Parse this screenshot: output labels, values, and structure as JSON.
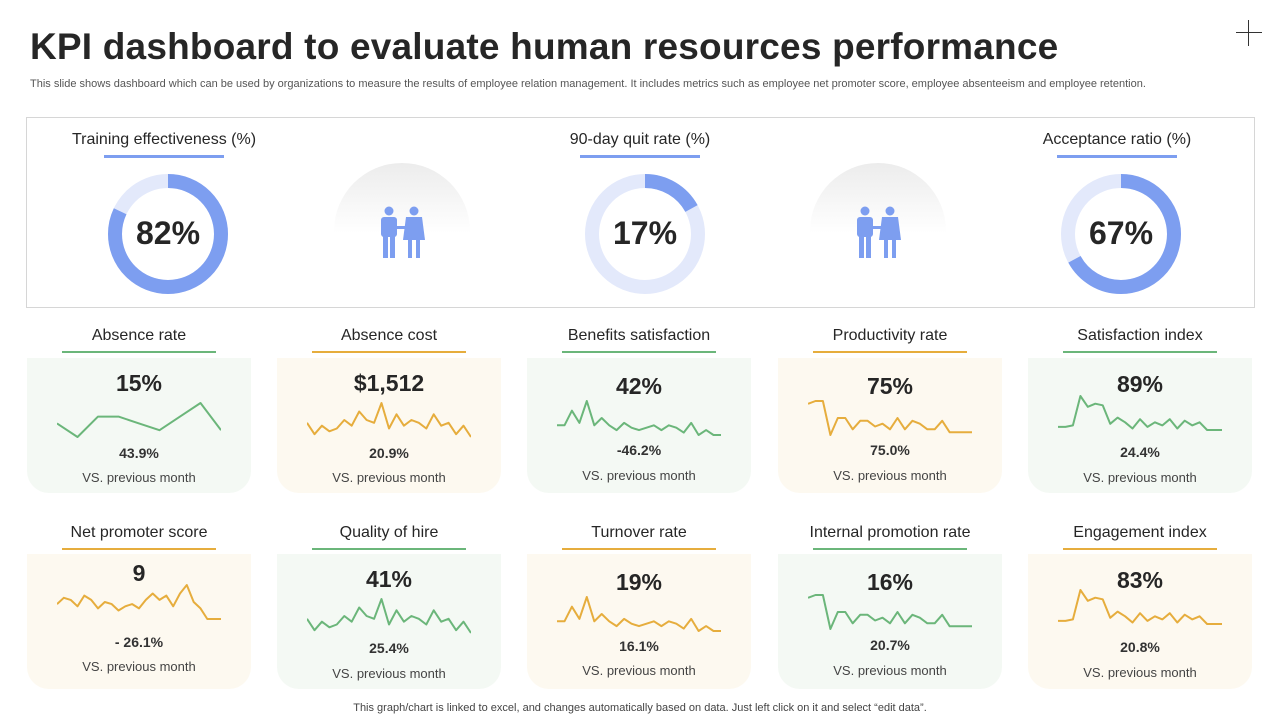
{
  "header": {
    "title": "KPI dashboard to evaluate human resources performance",
    "subtitle": "This slide shows dashboard which can be used by organizations to measure the results of employee relation management. It includes metrics such as employee net promoter score, employee absenteeism and employee retention."
  },
  "colors": {
    "blue_accent": "#7d9ef0",
    "blue_track": "#e3e9fb",
    "green": "#6bb67a",
    "orange": "#e6ad3d",
    "people_icon": "#7d9ef0"
  },
  "gauges": [
    {
      "title": "Training effectiveness (%)",
      "value_text": "82%",
      "percent": 82
    },
    {
      "title": "90-day quit rate (%)",
      "value_text": "17%",
      "percent": 17
    },
    {
      "title": "Acceptance ratio (%)",
      "value_text": "67%",
      "percent": 67
    }
  ],
  "people_icons": [
    "people-icon",
    "people-icon"
  ],
  "cards": [
    {
      "title": "Absence rate",
      "value": "15%",
      "change": "43.9%",
      "vs": "VS. previous month",
      "color": "green",
      "spark": [
        6,
        4,
        7,
        7,
        6,
        5,
        7,
        9,
        5
      ]
    },
    {
      "title": "Absence cost",
      "value": "$1,512",
      "change": "20.9%",
      "vs": "VS. previous month",
      "color": "orange",
      "spark": [
        8,
        4,
        7,
        5,
        6,
        9,
        7,
        12,
        9,
        8,
        15,
        6,
        11,
        7,
        9,
        8,
        6,
        11,
        7,
        8,
        4,
        7,
        3
      ]
    },
    {
      "title": "Benefits satisfaction",
      "value": "42%",
      "change": "-46.2%",
      "vs": "VS. previous month",
      "color": "green",
      "spark": [
        8,
        8,
        14,
        9,
        18,
        8,
        11,
        8,
        6,
        9,
        7,
        6,
        7,
        8,
        6,
        8,
        7,
        5,
        9,
        4,
        6,
        4,
        4
      ]
    },
    {
      "title": "Productivity rate",
      "value": "75%",
      "change": "75.0%",
      "vs": "VS. previous month",
      "color": "orange",
      "spark": [
        14,
        15,
        15,
        3,
        9,
        9,
        5,
        8,
        8,
        6,
        7,
        5,
        9,
        5,
        8,
        7,
        5,
        5,
        8,
        4,
        4,
        4,
        4
      ]
    },
    {
      "title": "Satisfaction index",
      "value": "89%",
      "change": "24.4%",
      "vs": "VS. previous month",
      "color": "green",
      "spark": [
        2,
        2,
        3,
        22,
        15,
        17,
        16,
        4,
        8,
        5,
        1,
        7,
        2,
        5,
        3,
        7,
        1,
        6,
        3,
        5,
        0,
        0,
        0
      ]
    },
    {
      "title": "Net promoter score",
      "value": "9",
      "change": "- 26.1%",
      "vs": "VS. previous month",
      "color": "orange",
      "spark": [
        9,
        12,
        11,
        8,
        13,
        11,
        7,
        10,
        9,
        6,
        8,
        9,
        7,
        11,
        14,
        11,
        13,
        8,
        14,
        18,
        10,
        7,
        2,
        2,
        2
      ]
    },
    {
      "title": "Quality of hire",
      "value": "41%",
      "change": "25.4%",
      "vs": "VS. previous month",
      "color": "green",
      "spark": [
        8,
        4,
        7,
        5,
        6,
        9,
        7,
        12,
        9,
        8,
        15,
        6,
        11,
        7,
        9,
        8,
        6,
        11,
        7,
        8,
        4,
        7,
        3
      ]
    },
    {
      "title": "Turnover rate",
      "value": "19%",
      "change": "16.1%",
      "vs": "VS. previous month",
      "color": "orange",
      "spark": [
        8,
        8,
        14,
        9,
        18,
        8,
        11,
        8,
        6,
        9,
        7,
        6,
        7,
        8,
        6,
        8,
        7,
        5,
        9,
        4,
        6,
        4,
        4
      ]
    },
    {
      "title": "Internal promotion rate",
      "value": "16%",
      "change": "20.7%",
      "vs": "VS. previous month",
      "color": "green",
      "spark": [
        14,
        15,
        15,
        3,
        9,
        9,
        5,
        8,
        8,
        6,
        7,
        5,
        9,
        5,
        8,
        7,
        5,
        5,
        8,
        4,
        4,
        4,
        4
      ]
    },
    {
      "title": "Engagement index",
      "value": "83%",
      "change": "20.8%",
      "vs": "VS. previous month",
      "color": "orange",
      "spark": [
        2,
        2,
        3,
        22,
        15,
        17,
        16,
        4,
        8,
        5,
        1,
        7,
        2,
        5,
        3,
        7,
        1,
        6,
        3,
        5,
        0,
        0,
        0
      ]
    }
  ],
  "footer": {
    "note": "This graph/chart is linked to excel, and changes automatically based on data. Just left click on it and select “edit data”."
  }
}
